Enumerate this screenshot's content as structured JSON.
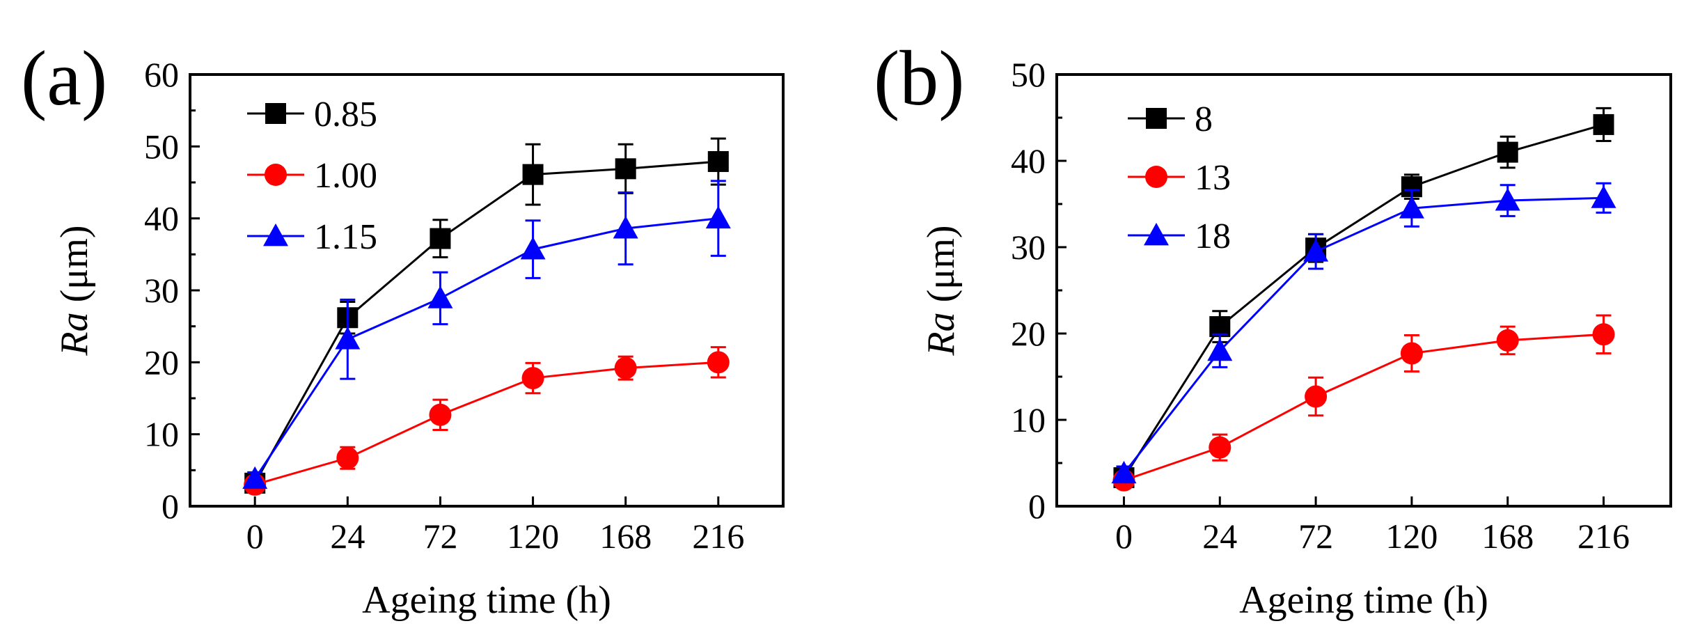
{
  "chart_data": [
    {
      "panel_label": "(a)",
      "type": "line",
      "x_ticks": [
        "0",
        "24",
        "72",
        "120",
        "168",
        "216"
      ],
      "y_ticks": [
        "0",
        "10",
        "20",
        "30",
        "40",
        "50",
        "60"
      ],
      "ylim": [
        0,
        60
      ],
      "xlabel": "Ageing time (h)",
      "ylabel_italic": "Ra",
      "ylabel_unit": " (μm)",
      "legend_position": "top-left",
      "grid": false,
      "series": [
        {
          "name": "0.85",
          "color": "#000000",
          "marker": "square",
          "values": [
            3.2,
            26.2,
            37.2,
            46.1,
            46.9,
            47.9
          ],
          "errors": [
            0.8,
            2.2,
            2.6,
            4.2,
            3.4,
            3.2
          ]
        },
        {
          "name": "1.00",
          "color": "#ff0000",
          "marker": "circle",
          "values": [
            3.0,
            6.7,
            12.7,
            17.8,
            19.2,
            20.0
          ],
          "errors": [
            0.7,
            1.5,
            2.1,
            2.1,
            1.6,
            2.1
          ]
        },
        {
          "name": "1.15",
          "color": "#0000ff",
          "marker": "triangle",
          "values": [
            3.8,
            23.2,
            28.9,
            35.7,
            38.6,
            40.0
          ],
          "errors": [
            0.9,
            5.5,
            3.6,
            4.0,
            5.0,
            5.2
          ]
        }
      ]
    },
    {
      "panel_label": "(b)",
      "type": "line",
      "x_ticks": [
        "0",
        "24",
        "72",
        "120",
        "168",
        "216"
      ],
      "y_ticks": [
        "0",
        "10",
        "20",
        "30",
        "40",
        "50"
      ],
      "ylim": [
        0,
        50
      ],
      "xlabel": "Ageing time (h)",
      "ylabel_italic": "Ra",
      "ylabel_unit": " (μm)",
      "legend_position": "top-left",
      "grid": false,
      "series": [
        {
          "name": "8",
          "color": "#000000",
          "marker": "square",
          "values": [
            3.3,
            20.8,
            29.9,
            37.0,
            41.0,
            44.2
          ],
          "errors": [
            0.7,
            1.8,
            1.6,
            1.4,
            1.8,
            1.9
          ]
        },
        {
          "name": "13",
          "color": "#ff0000",
          "marker": "circle",
          "values": [
            3.0,
            6.8,
            12.7,
            17.7,
            19.2,
            19.9
          ],
          "errors": [
            0.7,
            1.5,
            2.2,
            2.1,
            1.6,
            2.2
          ]
        },
        {
          "name": "18",
          "color": "#0000ff",
          "marker": "triangle",
          "values": [
            3.8,
            18.0,
            29.5,
            34.5,
            35.4,
            35.7
          ],
          "errors": [
            0.8,
            1.9,
            2.0,
            2.1,
            1.8,
            1.7
          ]
        }
      ]
    }
  ]
}
